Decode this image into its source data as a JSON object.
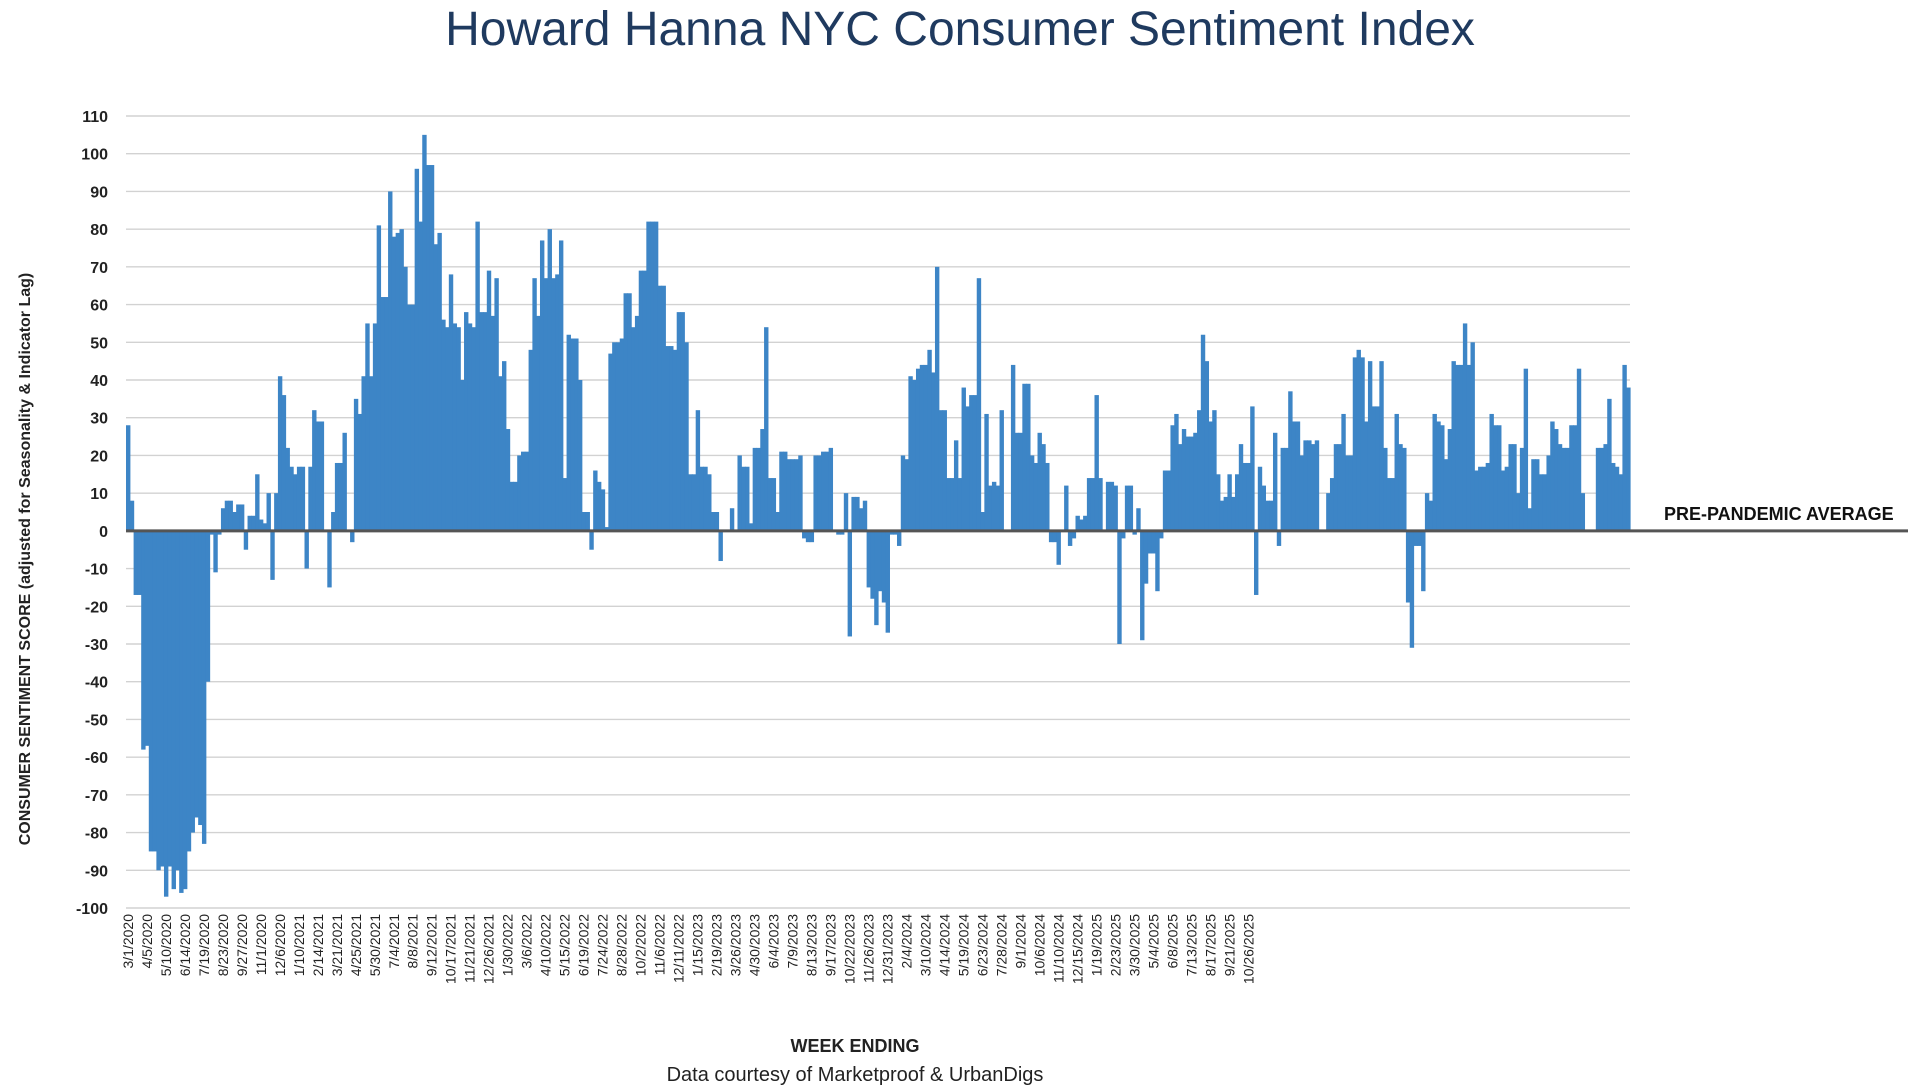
{
  "chart_data": {
    "type": "bar",
    "title": "Howard Hanna NYC Consumer Sentiment Index",
    "xlabel": "WEEK ENDING",
    "ylabel": "CONSUMER SENTIMENT SCORE (adjusted for Seasonality & Indicator Lag)",
    "credit": "Data courtesy of Marketproof & UrbanDigs",
    "reference_line": {
      "value": 0,
      "label": "PRE-PANDEMIC AVERAGE"
    },
    "ylim": [
      -100,
      110
    ],
    "y_ticks": [
      110,
      100,
      90,
      80,
      70,
      60,
      50,
      40,
      30,
      20,
      10,
      0,
      -10,
      -20,
      -30,
      -40,
      -50,
      -60,
      -70,
      -80,
      -90,
      -100
    ],
    "x_tick_labels": [
      "3/1/2020",
      "4/5/2020",
      "5/10/2020",
      "6/14/2020",
      "7/19/2020",
      "8/23/2020",
      "9/27/2020",
      "11/1/2020",
      "12/6/2020",
      "1/10/2021",
      "2/14/2021",
      "3/21/2021",
      "4/25/2021",
      "5/30/2021",
      "7/4/2021",
      "8/8/2021",
      "9/12/2021",
      "10/17/2021",
      "11/21/2021",
      "12/26/2021",
      "1/30/2022",
      "3/6/2022",
      "4/10/2022",
      "5/15/2022",
      "6/19/2022",
      "7/24/2022",
      "8/28/2022",
      "10/2/2022",
      "11/6/2022",
      "12/11/2022",
      "1/15/2023",
      "2/19/2023",
      "3/26/2023",
      "4/30/2023",
      "6/4/2023",
      "7/9/2023",
      "8/13/2023",
      "9/17/2023",
      "10/22/2023",
      "11/26/2023",
      "12/31/2023",
      "2/4/2024",
      "3/10/2024",
      "4/14/2024",
      "5/19/2024",
      "6/23/2024",
      "7/28/2024",
      "9/1/2024",
      "10/6/2024",
      "11/10/2024",
      "12/15/2024",
      "1/19/2025",
      "2/23/2025",
      "3/30/2025",
      "5/4/2025",
      "6/8/2025",
      "7/13/2025",
      "8/17/2025",
      "9/21/2025",
      "10/26/2025"
    ],
    "values": [
      28,
      8,
      -17,
      -17,
      -58,
      -57,
      -85,
      -85,
      -90,
      -89,
      -97,
      -89,
      -95,
      -90,
      -96,
      -95,
      -85,
      -80,
      -76,
      -78,
      -83,
      -40,
      -1,
      -11,
      -1,
      6,
      8,
      8,
      5,
      7,
      7,
      -5,
      4,
      4,
      15,
      3,
      2,
      10,
      -13,
      10,
      41,
      36,
      22,
      17,
      15,
      17,
      17,
      -10,
      17,
      32,
      29,
      29,
      0,
      -15,
      5,
      18,
      18,
      26,
      0,
      -3,
      35,
      31,
      41,
      55,
      41,
      55,
      81,
      62,
      62,
      90,
      78,
      79,
      80,
      70,
      60,
      60,
      96,
      82,
      105,
      97,
      97,
      76,
      79,
      56,
      54,
      68,
      55,
      54,
      40,
      58,
      55,
      54,
      82,
      58,
      58,
      69,
      57,
      67,
      41,
      45,
      27,
      13,
      13,
      20,
      21,
      21,
      48,
      67,
      57,
      77,
      67,
      80,
      67,
      68,
      77,
      14,
      52,
      51,
      51,
      40,
      5,
      5,
      -5,
      16,
      13,
      11,
      1,
      47,
      50,
      50,
      51,
      63,
      63,
      54,
      57,
      69,
      69,
      82,
      82,
      82,
      65,
      65,
      49,
      49,
      48,
      58,
      58,
      50,
      15,
      15,
      32,
      17,
      17,
      15,
      5,
      5,
      -8,
      0,
      0,
      6,
      0,
      20,
      17,
      17,
      2,
      22,
      22,
      27,
      54,
      14,
      14,
      5,
      21,
      21,
      19,
      19,
      19,
      20,
      -2,
      -3,
      -3,
      20,
      20,
      21,
      21,
      22,
      0,
      -1,
      -1,
      10,
      -28,
      9,
      9,
      6,
      8,
      -15,
      -18,
      -25,
      -16,
      -19,
      -27,
      -1,
      -1,
      -4,
      20,
      19,
      41,
      40,
      43,
      44,
      44,
      48,
      42,
      70,
      32,
      32,
      14,
      14,
      24,
      14,
      38,
      33,
      36,
      36,
      67,
      5,
      31,
      12,
      13,
      12,
      32,
      0,
      0,
      44,
      26,
      26,
      39,
      39,
      20,
      18,
      26,
      23,
      18,
      -3,
      -3,
      -9,
      0,
      12,
      -4,
      -2,
      4,
      3,
      4,
      14,
      14,
      36,
      14,
      0,
      13,
      13,
      12,
      -30,
      -2,
      12,
      12,
      -1,
      6,
      -29,
      -14,
      -6,
      -6,
      -16,
      -2,
      16,
      16,
      28,
      31,
      23,
      27,
      25,
      25,
      26,
      32,
      52,
      45,
      29,
      32,
      15,
      8,
      9,
      15,
      9,
      15,
      23,
      18,
      18,
      33,
      -17,
      17,
      12,
      8,
      8,
      26,
      -4,
      22,
      22,
      37,
      29,
      29,
      20,
      24,
      24,
      23,
      24,
      0,
      0,
      10,
      14,
      23,
      23,
      31,
      20,
      20,
      46,
      48,
      46,
      29,
      45,
      33,
      33,
      45,
      22,
      14,
      14,
      31,
      23,
      22,
      -19,
      -31,
      -4,
      -4,
      -16,
      10,
      8,
      31,
      29,
      28,
      19,
      27,
      45,
      44,
      44,
      55,
      44,
      50,
      16,
      17,
      17,
      18,
      31,
      28,
      28,
      16,
      17,
      23,
      23,
      10,
      22,
      43,
      6,
      19,
      19,
      15,
      15,
      20,
      29,
      27,
      23,
      22,
      22,
      28,
      28,
      43,
      10,
      0,
      0,
      0,
      22,
      22,
      23,
      35,
      18,
      17,
      15,
      44,
      38
    ]
  }
}
